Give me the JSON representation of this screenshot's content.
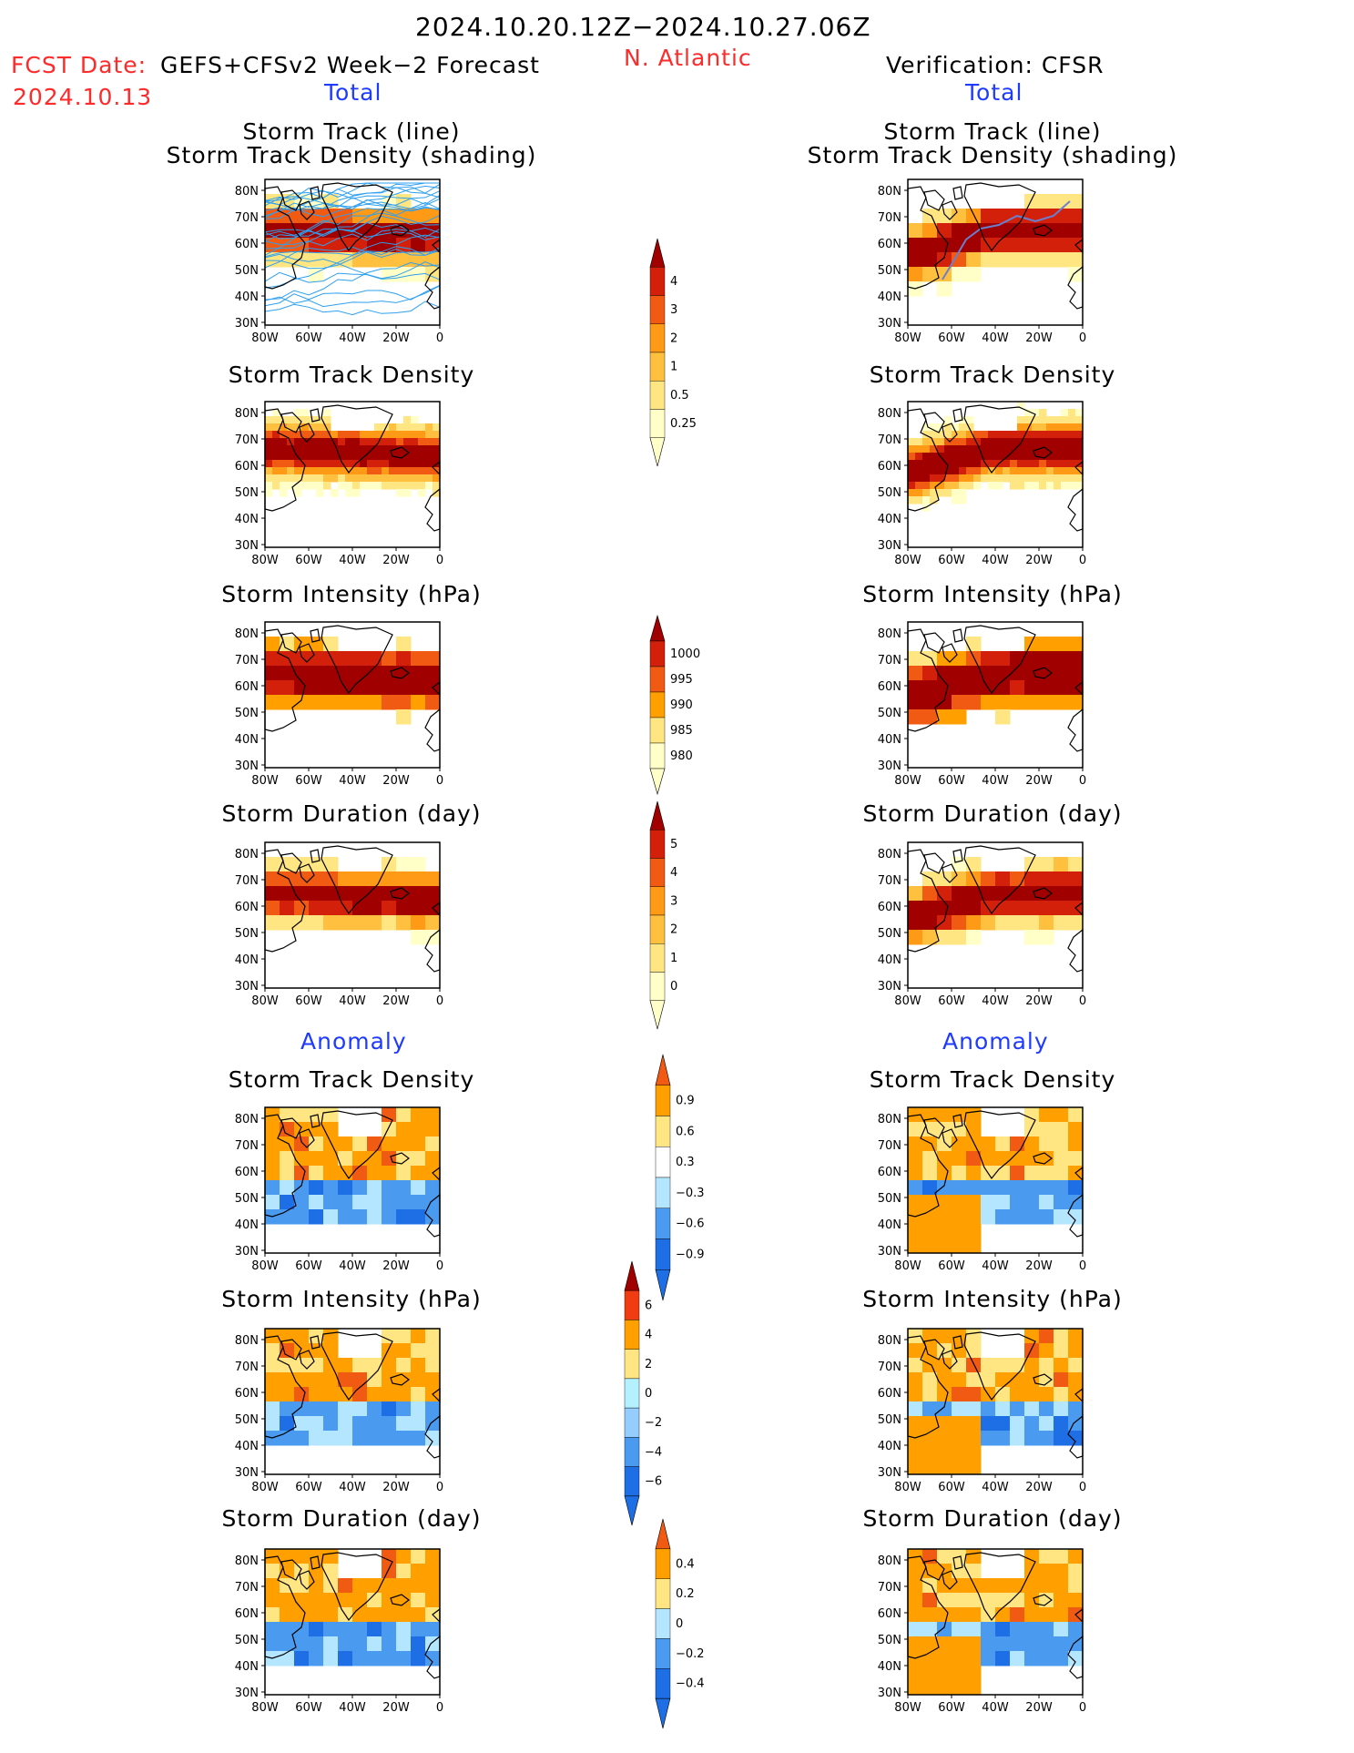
{
  "header": {
    "period": "2024.10.20.12Z−2024.10.27.06Z",
    "fcst_label": "FCST Date:",
    "fcst_model": "GEFS+CFSv2 Week−2 Forecast",
    "fcst_date": "2024.10.13",
    "region": "N. Atlantic",
    "verification": "Verification: CFSR",
    "total_label": "Total",
    "anomaly_label": "Anomaly"
  },
  "axes": {
    "lat_labels": [
      "80N",
      "70N",
      "60N",
      "50N",
      "40N",
      "30N"
    ],
    "lon_labels": [
      "80W",
      "60W",
      "40W",
      "20W",
      "0"
    ]
  },
  "panel_titles": {
    "track_line": "Storm Track (line)",
    "track_shading": "Storm Track Density (shading)",
    "density": "Storm Track Density",
    "intensity": "Storm Intensity (hPa)",
    "duration": "Storm Duration (day)"
  },
  "colorbars": [
    {
      "id": "density-total",
      "labels": [
        "4",
        "3",
        "2",
        "1",
        "0.5",
        "0.25"
      ],
      "colors": [
        "#ffffc8",
        "#ffe682",
        "#ffc040",
        "#ff9a16",
        "#f05a12",
        "#d2200a",
        "#a00000"
      ]
    },
    {
      "id": "intensity-total",
      "labels": [
        "1000",
        "995",
        "990",
        "985",
        "980"
      ],
      "colors": [
        "#ffffc8",
        "#ffe682",
        "#ffa000",
        "#f05a12",
        "#d2200a",
        "#a00000"
      ]
    },
    {
      "id": "duration-total",
      "labels": [
        "5",
        "4",
        "3",
        "2",
        "1",
        "0"
      ],
      "colors": [
        "#ffffc8",
        "#ffe682",
        "#ffc040",
        "#ff9a16",
        "#f05a12",
        "#d2200a",
        "#a00000"
      ]
    },
    {
      "id": "density-anom",
      "labels": [
        "0.9",
        "0.6",
        "0.3",
        "−0.3",
        "−0.6",
        "−0.9"
      ],
      "colors": [
        "#1e6ee6",
        "#4a9bf0",
        "#b4e6ff",
        "#ffffff",
        "#ffe682",
        "#ffa000",
        "#f05a12"
      ]
    },
    {
      "id": "intensity-anom",
      "labels": [
        "6",
        "4",
        "2",
        "0",
        "−2",
        "−4",
        "−6"
      ],
      "colors": [
        "#1e6ee6",
        "#4a9bf0",
        "#96cdff",
        "#b4f0ff",
        "#ffe682",
        "#ffa000",
        "#f03c12",
        "#a00000"
      ]
    },
    {
      "id": "duration-anom",
      "labels": [
        "0.4",
        "0.2",
        "0",
        "−0.2",
        "−0.4"
      ],
      "colors": [
        "#1e6ee6",
        "#4a9bf0",
        "#b4e6ff",
        "#ffe682",
        "#ffa000",
        "#f05a12"
      ]
    }
  ]
}
